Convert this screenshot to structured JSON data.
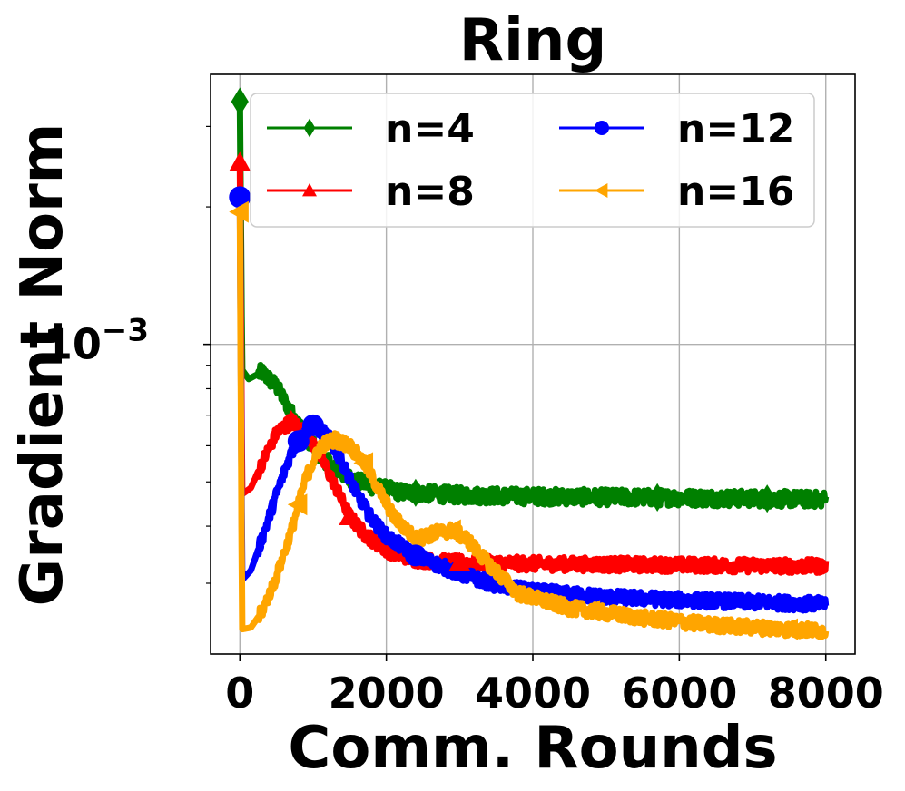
{
  "chart_data": {
    "type": "line",
    "title": "Ring",
    "xlabel": "Comm. Rounds",
    "ylabel": "Gradient Norm",
    "xlim": [
      -400,
      8400
    ],
    "x_ticks": [
      0,
      2000,
      4000,
      6000,
      8000
    ],
    "x_tick_labels": [
      "0",
      "2000",
      "4000",
      "6000",
      "8000"
    ],
    "yscale": "log",
    "ylim": [
      0.00021,
      0.0039
    ],
    "y_ticks": [
      0.001
    ],
    "y_tick_labels": [
      "10",
      "−3"
    ],
    "grid": true,
    "legend_position": "top-right",
    "legend_columns": 2,
    "series": [
      {
        "name": "n=4",
        "color": "#008000",
        "marker": "diamond",
        "x": [
          0,
          30,
          120,
          300,
          500,
          700,
          900,
          1100,
          1300,
          1500,
          1800,
          2200,
          3000,
          4000,
          5000,
          6000,
          7000,
          8000
        ],
        "y": [
          0.0034,
          0.00088,
          0.00084,
          0.00087,
          0.00081,
          0.00071,
          0.00063,
          0.00057,
          0.000535,
          0.00051,
          0.00049,
          0.000475,
          0.000468,
          0.000465,
          0.000463,
          0.000462,
          0.00046,
          0.000458
        ],
        "marker_x": [
          0,
          2400,
          5700,
          7200
        ],
        "noise": 0.04
      },
      {
        "name": "n=8",
        "color": "#ff0000",
        "marker": "triangle-up",
        "x": [
          0,
          30,
          150,
          300,
          500,
          700,
          900,
          1100,
          1300,
          1500,
          1700,
          2000,
          2400,
          3000,
          3500,
          4000,
          5000,
          6000,
          7000,
          8000
        ],
        "y": [
          0.0025,
          0.00047,
          0.000485,
          0.00055,
          0.00064,
          0.00068,
          0.00064,
          0.00057,
          0.00049,
          0.00042,
          0.000385,
          0.000355,
          0.000338,
          0.000333,
          0.000332,
          0.000331,
          0.00033,
          0.000329,
          0.000328,
          0.000327
        ],
        "marker_x": [
          0,
          700,
          1500,
          3000
        ],
        "noise": 0.035
      },
      {
        "name": "n=12",
        "color": "#0000ff",
        "marker": "circle",
        "x": [
          0,
          30,
          150,
          300,
          500,
          700,
          900,
          1000,
          1200,
          1400,
          1600,
          1800,
          2000,
          2400,
          3000,
          3500,
          4000,
          5000,
          6000,
          7000,
          8000
        ],
        "y": [
          0.0021,
          0.000305,
          0.00032,
          0.000375,
          0.00047,
          0.00058,
          0.00065,
          0.000665,
          0.00063,
          0.00055,
          0.00047,
          0.000415,
          0.00038,
          0.000345,
          0.000315,
          0.000298,
          0.000288,
          0.00028,
          0.000276,
          0.000273,
          0.00027
        ],
        "marker_x": [
          0,
          800,
          1000,
          2400
        ],
        "noise": 0.035
      },
      {
        "name": "n=16",
        "color": "#ffa500",
        "marker": "triangle-left",
        "x": [
          0,
          30,
          150,
          300,
          500,
          700,
          900,
          1100,
          1300,
          1500,
          1700,
          1900,
          2100,
          2400,
          2700,
          2900,
          3100,
          3400,
          3800,
          4500,
          5500,
          6500,
          7500,
          8000
        ],
        "y": [
          0.00195,
          0.000238,
          0.00024,
          0.00026,
          0.00031,
          0.00039,
          0.00051,
          0.0006,
          0.00062,
          0.0006,
          0.00055,
          0.00048,
          0.00042,
          0.000375,
          0.000388,
          0.000392,
          0.000375,
          0.00033,
          0.000285,
          0.000265,
          0.000252,
          0.000243,
          0.000238,
          0.000236
        ],
        "marker_x": [
          0,
          800,
          1700,
          2900,
          4800,
          7500
        ],
        "noise": 0.035
      }
    ]
  }
}
